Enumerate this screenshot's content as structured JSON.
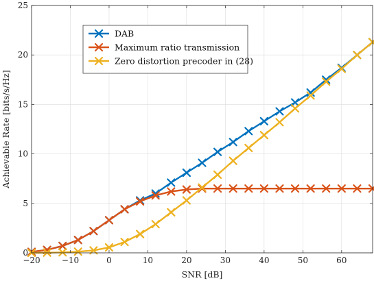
{
  "chart_data": {
    "type": "line",
    "xlabel": "SNR [dB]",
    "ylabel": "Achievable Rate [bits/s/Hz]",
    "xlim": [
      -20,
      68
    ],
    "ylim": [
      0,
      25
    ],
    "xticks": [
      -20,
      -10,
      0,
      10,
      20,
      30,
      40,
      50,
      60
    ],
    "yticks": [
      0,
      5,
      10,
      15,
      20,
      25
    ],
    "grid": true,
    "legend_position": "top-left",
    "x": [
      -20,
      -16,
      -12,
      -8,
      -4,
      0,
      4,
      8,
      12,
      16,
      20,
      24,
      28,
      32,
      36,
      40,
      44,
      48,
      52,
      56,
      60,
      64,
      68
    ],
    "series": [
      {
        "name": "DAB",
        "color": "#0072BD",
        "marker": "x-mark",
        "values": [
          0.1,
          0.3,
          0.7,
          1.3,
          2.2,
          3.3,
          4.4,
          5.3,
          6.0,
          7.1,
          8.1,
          9.1,
          10.2,
          11.2,
          12.3,
          13.3,
          14.3,
          15.2,
          16.2,
          17.5,
          18.7,
          20.0,
          21.3
        ]
      },
      {
        "name": "Maximum ratio transmission",
        "color": "#D95319",
        "marker": "x-mark",
        "values": [
          0.1,
          0.3,
          0.7,
          1.3,
          2.2,
          3.3,
          4.4,
          5.2,
          5.8,
          6.2,
          6.4,
          6.5,
          6.5,
          6.5,
          6.5,
          6.5,
          6.5,
          6.5,
          6.5,
          6.5,
          6.5,
          6.5,
          6.5
        ]
      },
      {
        "name": "Zero distortion precoder in (28)",
        "color": "#EDB120",
        "marker": "x-mark",
        "values": [
          0.0,
          0.02,
          0.05,
          0.12,
          0.25,
          0.55,
          1.1,
          1.9,
          2.9,
          4.1,
          5.3,
          6.6,
          7.9,
          9.3,
          10.6,
          11.9,
          13.2,
          14.6,
          15.9,
          17.3,
          18.6,
          20.0,
          21.3
        ]
      }
    ]
  }
}
